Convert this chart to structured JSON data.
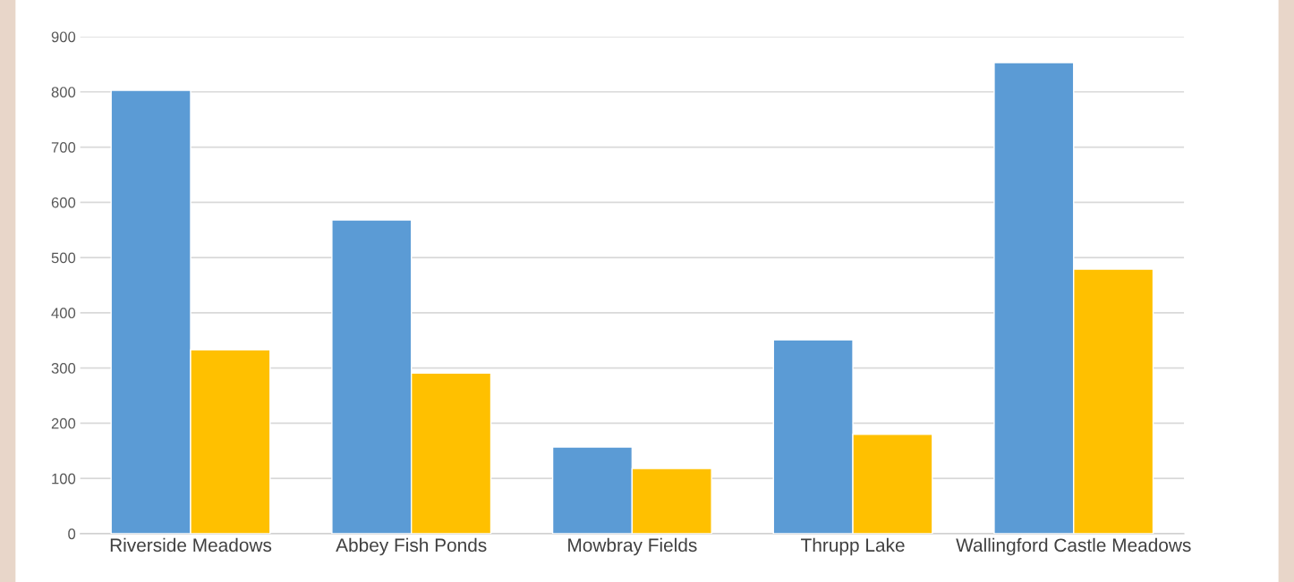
{
  "chart_data": {
    "type": "bar",
    "categories": [
      "Riverside Meadows",
      "Abbey Fish Ponds",
      "Mowbray Fields",
      "Thrupp Lake",
      "Wallingford Castle Meadows"
    ],
    "series": [
      {
        "color": "#5b9bd5",
        "values": [
          803,
          568,
          157,
          351,
          853
        ]
      },
      {
        "color": "#ffc000",
        "values": [
          333,
          291,
          118,
          180,
          479
        ]
      }
    ],
    "ylim": [
      0,
      900
    ],
    "yticks": [
      0,
      100,
      200,
      300,
      400,
      500,
      600,
      700,
      800,
      900
    ],
    "grid": "y",
    "legend": false
  }
}
